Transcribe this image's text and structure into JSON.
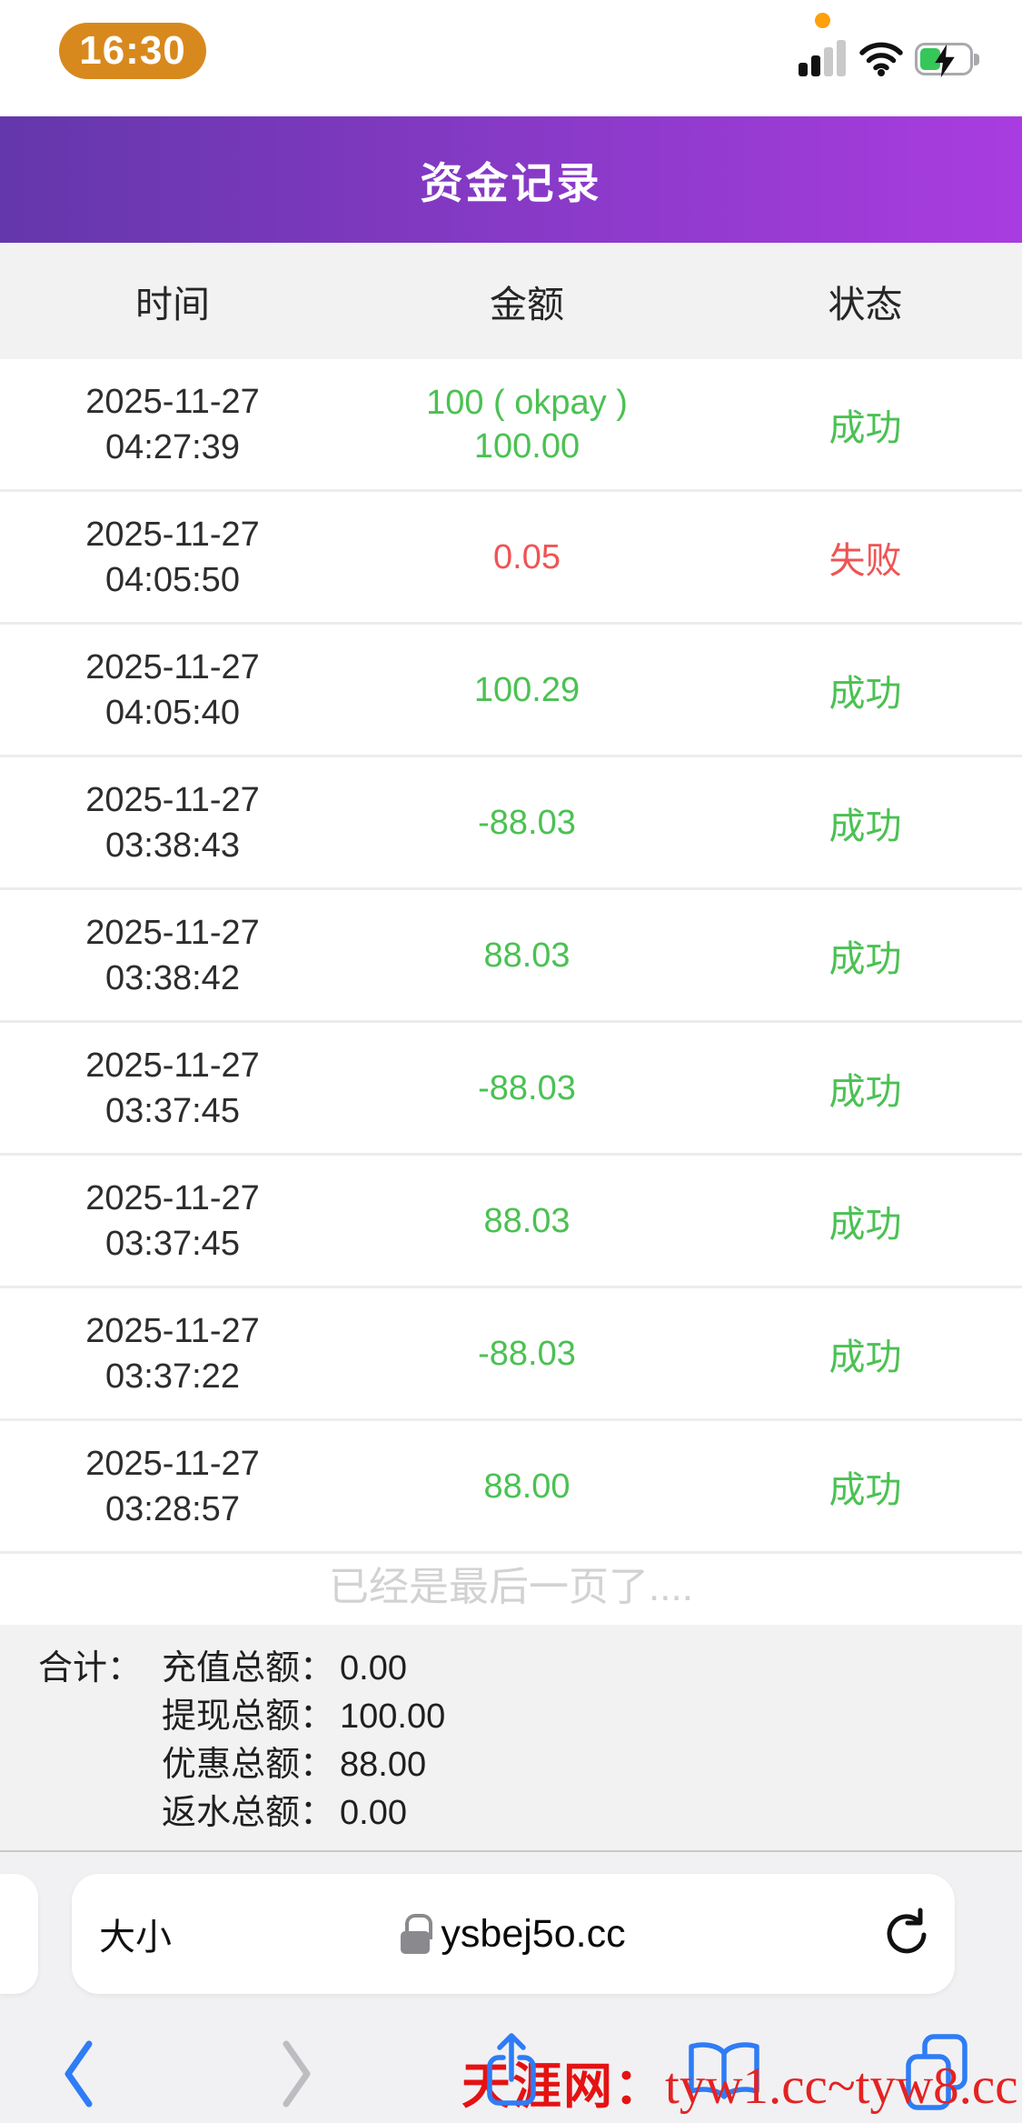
{
  "status_bar": {
    "time": "16:30"
  },
  "header": {
    "title": "资金记录"
  },
  "table": {
    "columns": [
      "时间",
      "金额",
      "状态"
    ],
    "rows": [
      {
        "date": "2025-11-27",
        "time": "04:27:39",
        "amount_line1": "100 ( okpay )",
        "amount_line2": "100.00",
        "status": "成功",
        "type": "success"
      },
      {
        "date": "2025-11-27",
        "time": "04:05:50",
        "amount_line1": "0.05",
        "status": "失败",
        "type": "fail"
      },
      {
        "date": "2025-11-27",
        "time": "04:05:40",
        "amount_line1": "100.29",
        "status": "成功",
        "type": "success"
      },
      {
        "date": "2025-11-27",
        "time": "03:38:43",
        "amount_line1": "-88.03",
        "status": "成功",
        "type": "success"
      },
      {
        "date": "2025-11-27",
        "time": "03:38:42",
        "amount_line1": "88.03",
        "status": "成功",
        "type": "success"
      },
      {
        "date": "2025-11-27",
        "time": "03:37:45",
        "amount_line1": "-88.03",
        "status": "成功",
        "type": "success"
      },
      {
        "date": "2025-11-27",
        "time": "03:37:45",
        "amount_line1": "88.03",
        "status": "成功",
        "type": "success"
      },
      {
        "date": "2025-11-27",
        "time": "03:37:22",
        "amount_line1": "-88.03",
        "status": "成功",
        "type": "success"
      },
      {
        "date": "2025-11-27",
        "time": "03:28:57",
        "amount_line1": "88.00",
        "status": "成功",
        "type": "success"
      }
    ],
    "end_message": "已经是最后一页了...."
  },
  "summary": {
    "label": "合计：",
    "items": [
      {
        "label": "充值总额：",
        "value": "0.00"
      },
      {
        "label": "提现总额：",
        "value": "100.00"
      },
      {
        "label": "优惠总额：",
        "value": "88.00"
      },
      {
        "label": "返水总额：",
        "value": "0.00"
      }
    ]
  },
  "browser": {
    "text_size_label": "大小",
    "url": "ysbej5o.cc",
    "watermark_prefix": "天涯网：",
    "watermark_url": "tyw1.cc~tyw8.cc"
  },
  "icons": {
    "status_bar": [
      "notification-dot",
      "cellular-signal",
      "wifi",
      "battery-charging"
    ],
    "header": [
      "back-arrow"
    ],
    "address_bar": [
      "lock",
      "reload"
    ],
    "toolbar": [
      "back-chevron",
      "forward-chevron",
      "share",
      "bookmarks",
      "tabs"
    ]
  },
  "colors": {
    "header_grad_left": "#6437ab",
    "header_grad_right": "#a93ce0",
    "success_green": "#4bc153",
    "fail_red": "#ef5455",
    "toolbar_blue": "#2e7cf6",
    "watermark_red": "#e51212",
    "time_pill_orange": "#d8891d",
    "battery_green": "#35c759",
    "notif_orange": "#ff9f0a"
  }
}
